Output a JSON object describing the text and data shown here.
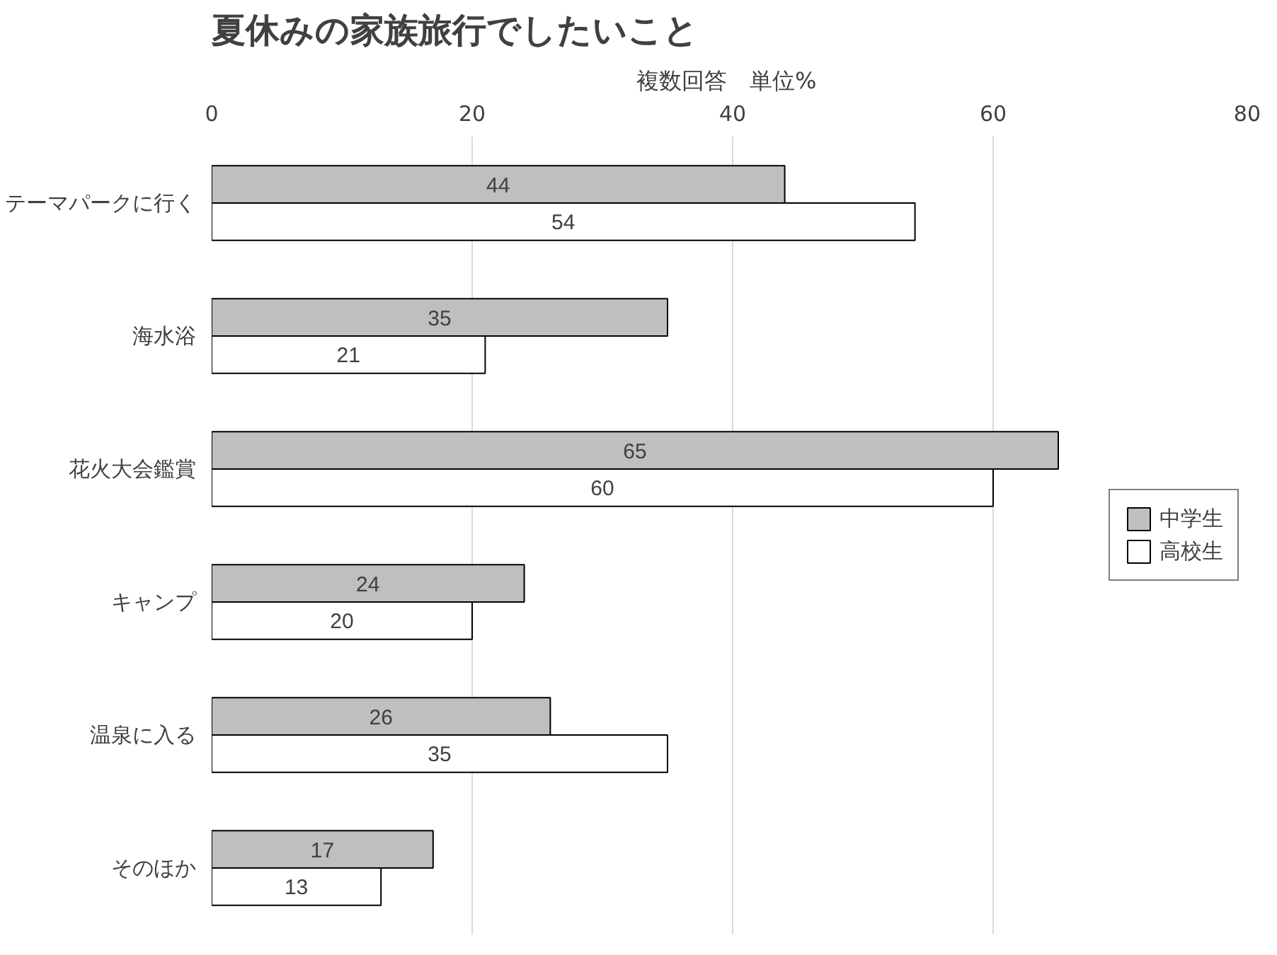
{
  "chart_data": {
    "type": "bar",
    "orientation": "horizontal",
    "title": "夏休みの家族旅行でしたいこと",
    "subtitle": "複数回答　単位%",
    "categories": [
      "テーマパークに行く",
      "海水浴",
      "花火大会鑑賞",
      "キャンプ",
      "温泉に入る",
      "そのほか"
    ],
    "series": [
      {
        "name": "中学生",
        "color": "#bfbfbf",
        "values": [
          44,
          35,
          65,
          24,
          26,
          17
        ]
      },
      {
        "name": "高校生",
        "color": "#ffffff",
        "values": [
          54,
          21,
          60,
          20,
          35,
          13
        ]
      }
    ],
    "xlim": [
      0,
      80
    ],
    "xticks": [
      0,
      20,
      40,
      60,
      80
    ],
    "grid": "x",
    "legend": "right",
    "data_labels": true
  }
}
